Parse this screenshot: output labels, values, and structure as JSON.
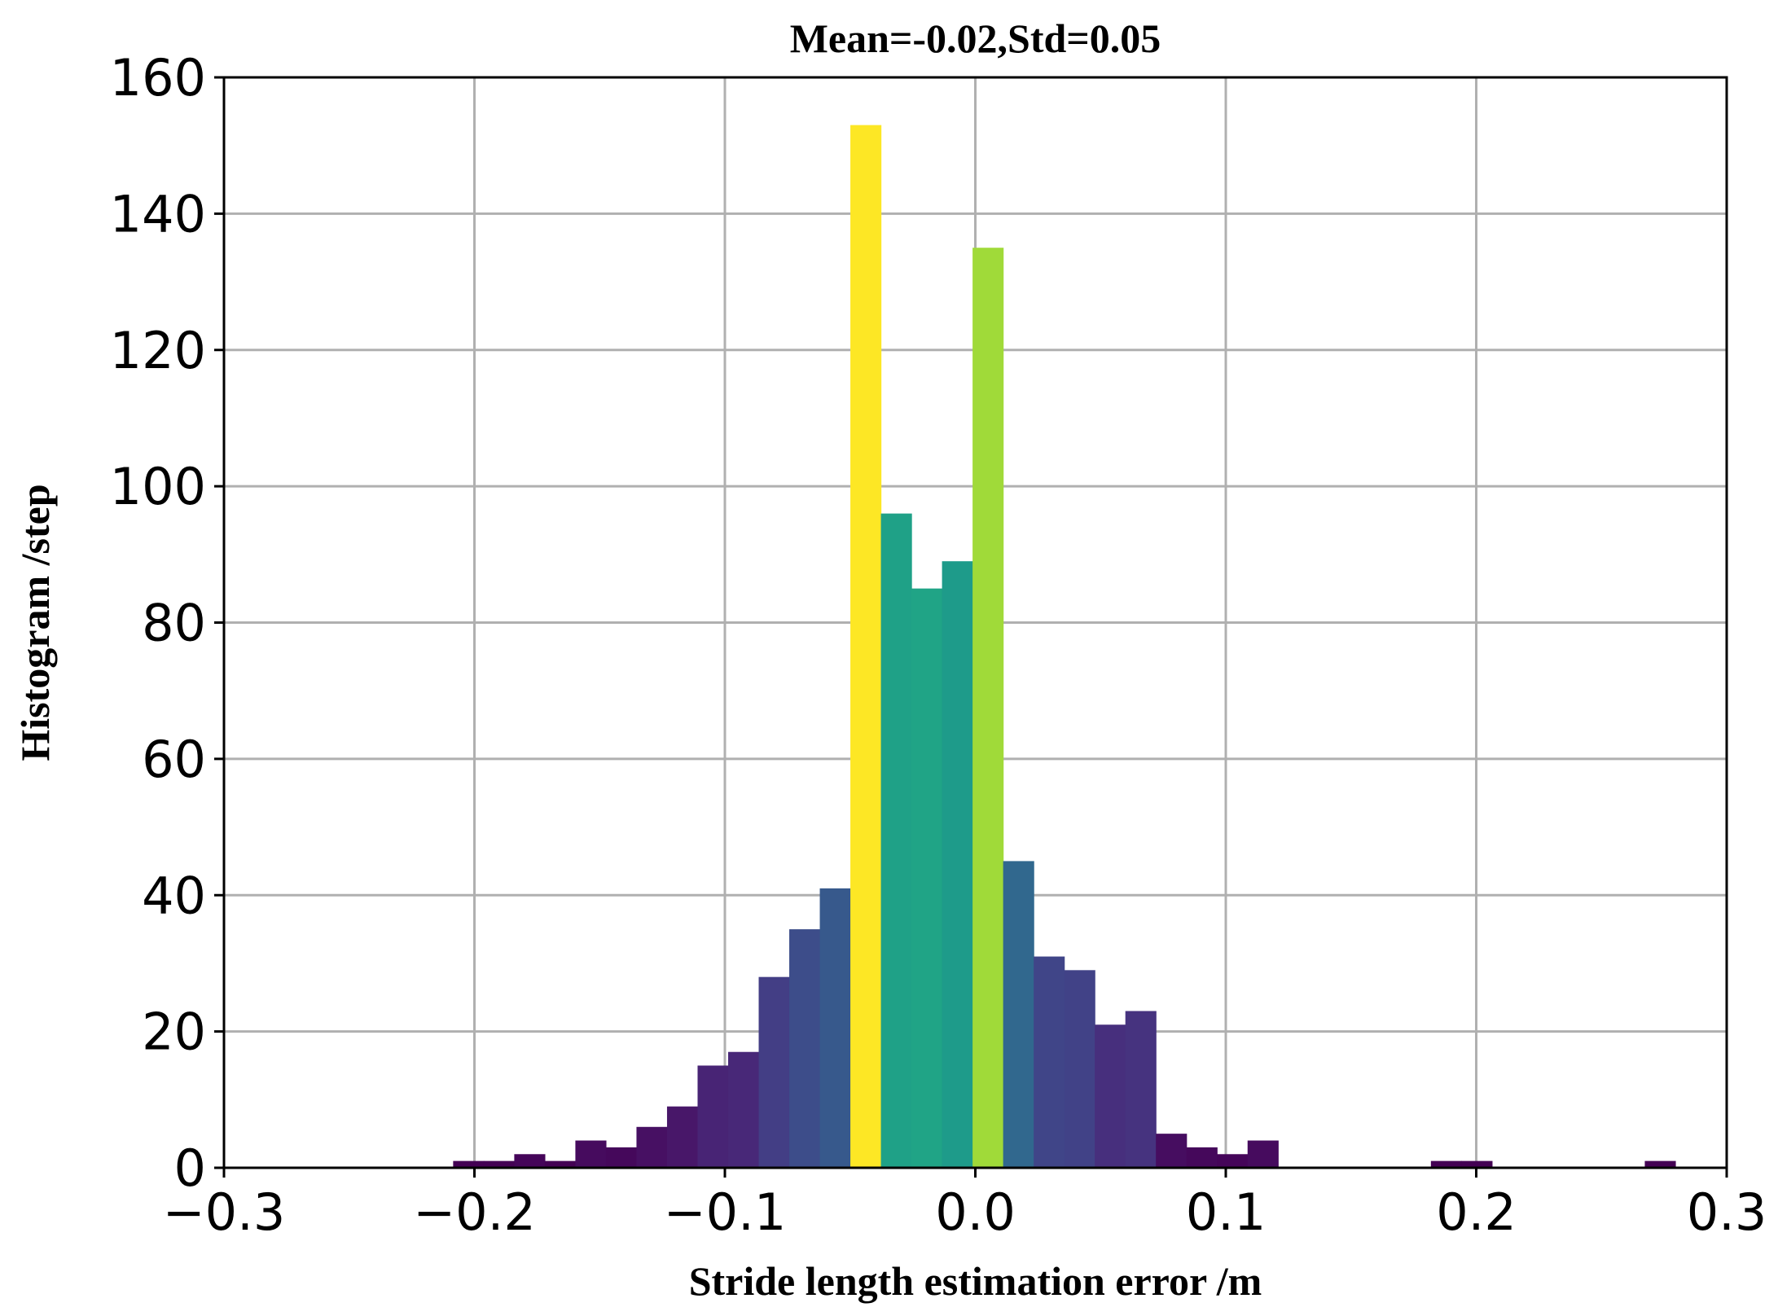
{
  "chart_data": {
    "type": "bar",
    "title": "Mean=-0.02,Std=0.05",
    "xlabel": "Stride length estimation error /m",
    "ylabel": "Histogram /step",
    "xlim": [
      -0.3,
      0.3
    ],
    "ylim": [
      0,
      160
    ],
    "xticks": [
      -0.3,
      -0.2,
      -0.1,
      0.0,
      0.1,
      0.2,
      0.3
    ],
    "xtick_labels": [
      "−0.3",
      "−0.2",
      "−0.1",
      "0.0",
      "0.1",
      "0.2",
      "0.3"
    ],
    "yticks": [
      0,
      20,
      40,
      60,
      80,
      100,
      120,
      140,
      160
    ],
    "ytick_labels": [
      "0",
      "20",
      "40",
      "60",
      "80",
      "100",
      "120",
      "140",
      "160"
    ],
    "grid": true,
    "colormap": "viridis",
    "bin_width": 0.0122,
    "bins": [
      {
        "x": -0.2085,
        "value": 1,
        "color": "#440154"
      },
      {
        "x": -0.1963,
        "value": 1,
        "color": "#440154"
      },
      {
        "x": -0.1841,
        "value": 2,
        "color": "#450559"
      },
      {
        "x": -0.1719,
        "value": 1,
        "color": "#440154"
      },
      {
        "x": -0.1597,
        "value": 4,
        "color": "#460b5e"
      },
      {
        "x": -0.1475,
        "value": 3,
        "color": "#45085b"
      },
      {
        "x": -0.1353,
        "value": 6,
        "color": "#471063"
      },
      {
        "x": -0.1231,
        "value": 9,
        "color": "#481769"
      },
      {
        "x": -0.1109,
        "value": 15,
        "color": "#482475"
      },
      {
        "x": -0.0987,
        "value": 17,
        "color": "#482878"
      },
      {
        "x": -0.0865,
        "value": 28,
        "color": "#433e85"
      },
      {
        "x": -0.0743,
        "value": 35,
        "color": "#3d4d8a"
      },
      {
        "x": -0.0621,
        "value": 41,
        "color": "#37598c"
      },
      {
        "x": -0.0499,
        "value": 153,
        "color": "#fde725"
      },
      {
        "x": -0.0377,
        "value": 96,
        "color": "#1fa187"
      },
      {
        "x": -0.0255,
        "value": 85,
        "color": "#20a486"
      },
      {
        "x": -0.0133,
        "value": 89,
        "color": "#1e9b8a"
      },
      {
        "x": -0.0011,
        "value": 135,
        "color": "#a0da39"
      },
      {
        "x": 0.0111,
        "value": 45,
        "color": "#31688e"
      },
      {
        "x": 0.0233,
        "value": 31,
        "color": "#404588"
      },
      {
        "x": 0.0355,
        "value": 29,
        "color": "#414287"
      },
      {
        "x": 0.0477,
        "value": 21,
        "color": "#472f7d"
      },
      {
        "x": 0.0599,
        "value": 23,
        "color": "#46337f"
      },
      {
        "x": 0.0721,
        "value": 5,
        "color": "#460d60"
      },
      {
        "x": 0.0843,
        "value": 3,
        "color": "#45085b"
      },
      {
        "x": 0.0965,
        "value": 2,
        "color": "#450559"
      },
      {
        "x": 0.1087,
        "value": 4,
        "color": "#460b5e"
      },
      {
        "x": 0.1819,
        "value": 1,
        "color": "#440154"
      },
      {
        "x": 0.1941,
        "value": 1,
        "color": "#440154"
      },
      {
        "x": 0.2673,
        "value": 1,
        "color": "#440154"
      }
    ]
  }
}
